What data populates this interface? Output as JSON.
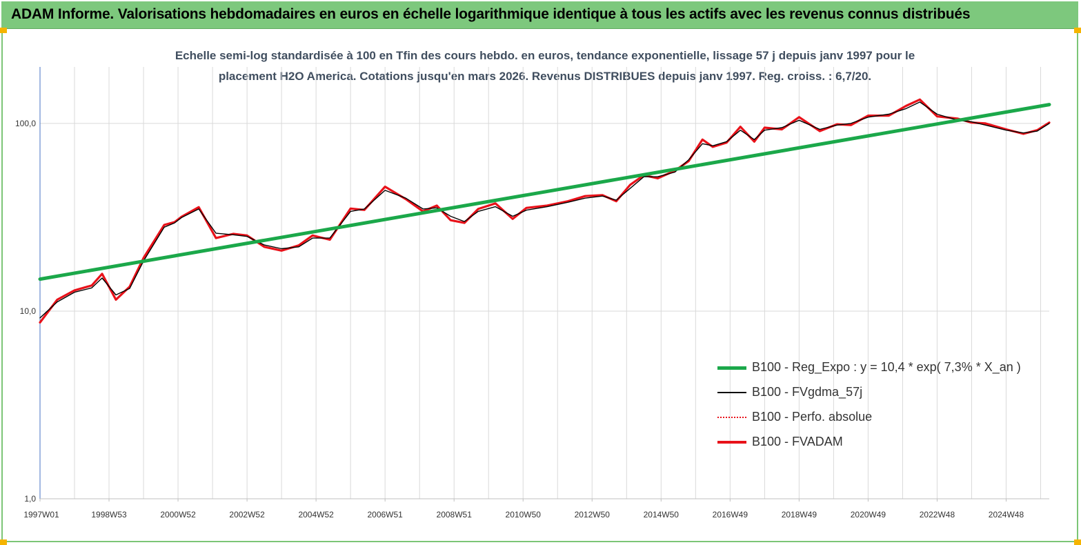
{
  "banner": {
    "title": "ADAM Informe. Valorisations hebdomadaires en euros en échelle logarithmique identique à tous les actifs avec les revenus connus distribués"
  },
  "chart_data": {
    "type": "line",
    "title": "Echelle semi-log standardisée à 100 en Tfin des cours hebdo. en euros, tendance exponentielle, lissage 57 j depuis janv 1997 pour le placement H2O America. Cotations jusqu'en mars 2026. Revenus DISTRIBUES depuis janv 1997. Reg. croiss. : 6,7/20.",
    "title_lines": [
      "Echelle semi-log standardisée à 100 en Tfin des cours hebdo. en euros, tendance exponentielle, lissage 57 j depuis janv 1997 pour le",
      "placement H2O America. Cotations jusqu'en mars 2026. Revenus DISTRIBUES depuis janv 1997. Reg. croiss. : 6,7/20."
    ],
    "y_scale": "log",
    "ylim": [
      1,
      200
    ],
    "y_ticks": [
      1,
      10,
      100
    ],
    "y_tick_labels": [
      "1,0",
      "10,0",
      "100,0"
    ],
    "x_range": [
      1997.0,
      2026.25
    ],
    "x_ticks": [
      1997.0,
      1999.0,
      2001.0,
      2003.0,
      2005.0,
      2007.0,
      2009.0,
      2011.0,
      2013.0,
      2015.0,
      2017.0,
      2019.0,
      2021.0,
      2023.0,
      2025.0
    ],
    "x_tick_labels": [
      "1997W01",
      "1998W53",
      "2000W52",
      "2002W52",
      "2004W52",
      "2006W51",
      "2008W51",
      "2010W50",
      "2012W50",
      "2014W50",
      "2016W49",
      "2018W49",
      "2020W49",
      "2022W48",
      "2024W48"
    ],
    "grid": "vertical",
    "legend_position": "bottom-right",
    "series": [
      {
        "name": "B100 - Reg_Expo : y = 10,4 *  exp( 7,3% *   X_an )",
        "color": "#1ba84a",
        "style": "thick",
        "x": [
          1997.0,
          2026.25
        ],
        "values": [
          14.8,
          126
        ]
      },
      {
        "name": "B100 - FVgdma_57j",
        "color": "#000000",
        "style": "thin",
        "x": [
          1997.0,
          1997.5,
          1998.0,
          1998.5,
          1998.8,
          1999.2,
          1999.6,
          2000.0,
          2000.6,
          2000.9,
          2001.1,
          2001.6,
          2002.1,
          2002.6,
          2003.0,
          2003.5,
          2004.0,
          2004.5,
          2004.9,
          2005.4,
          2006.0,
          2006.4,
          2007.0,
          2007.6,
          2008.1,
          2008.5,
          2008.9,
          2009.3,
          2009.7,
          2010.2,
          2010.7,
          2011.1,
          2011.7,
          2012.3,
          2012.8,
          2013.3,
          2013.7,
          2014.1,
          2014.5,
          2014.9,
          2015.4,
          2015.8,
          2016.2,
          2016.5,
          2016.9,
          2017.3,
          2017.7,
          2018.0,
          2018.5,
          2019.0,
          2019.6,
          2020.1,
          2020.5,
          2021.0,
          2021.6,
          2022.1,
          2022.5,
          2023.0,
          2023.6,
          2024.0,
          2024.4,
          2025.0,
          2025.5,
          2025.9,
          2026.25
        ],
        "values": [
          9.2,
          11.2,
          12.6,
          13.3,
          15.0,
          12.2,
          13.2,
          18.5,
          28.0,
          29.5,
          31.5,
          35.0,
          26.0,
          25.5,
          25.0,
          22.5,
          21.5,
          22.0,
          24.5,
          24.5,
          34.0,
          35.0,
          44.0,
          40.0,
          35.0,
          35.5,
          32.0,
          30.0,
          34.0,
          36.0,
          32.0,
          34.5,
          36.0,
          38.0,
          40.0,
          41.0,
          39.0,
          45.0,
          52.0,
          52.0,
          55.0,
          64.0,
          78.0,
          76.0,
          80.0,
          92.0,
          82.0,
          92.0,
          95.0,
          104.0,
          93.0,
          98.0,
          100.0,
          108.0,
          112.0,
          120.0,
          130.0,
          112.0,
          104.0,
          102.0,
          98.0,
          92.0,
          89.0,
          91.0,
          100.0
        ]
      },
      {
        "name": "B100 - Perfo. absolue",
        "color": "#e8121a",
        "style": "dotted"
      },
      {
        "name": "B100 - FVADAM",
        "color": "#e8121a",
        "style": "thick",
        "x": [
          1997.0,
          1997.5,
          1998.0,
          1998.5,
          1998.8,
          1999.2,
          1999.6,
          2000.0,
          2000.6,
          2000.9,
          2001.1,
          2001.6,
          2002.1,
          2002.6,
          2003.0,
          2003.5,
          2004.0,
          2004.5,
          2004.9,
          2005.4,
          2006.0,
          2006.4,
          2007.0,
          2007.6,
          2008.1,
          2008.5,
          2008.9,
          2009.3,
          2009.7,
          2010.2,
          2010.7,
          2011.1,
          2011.7,
          2012.3,
          2012.8,
          2013.3,
          2013.7,
          2014.1,
          2014.5,
          2014.9,
          2015.4,
          2015.8,
          2016.2,
          2016.5,
          2016.9,
          2017.3,
          2017.7,
          2018.0,
          2018.5,
          2019.0,
          2019.6,
          2020.1,
          2020.5,
          2021.0,
          2021.6,
          2022.1,
          2022.5,
          2023.0,
          2023.6,
          2024.0,
          2024.4,
          2025.0,
          2025.5,
          2025.9,
          2026.25
        ],
        "values": [
          8.7,
          11.5,
          12.9,
          13.7,
          15.8,
          11.5,
          13.5,
          19.2,
          28.8,
          29.8,
          31.8,
          35.8,
          24.5,
          25.8,
          25.3,
          22.0,
          21.0,
          22.4,
          25.3,
          24.0,
          35.2,
          34.6,
          46.0,
          39.5,
          34.0,
          36.5,
          30.5,
          29.5,
          35.0,
          37.5,
          31.0,
          35.5,
          36.5,
          38.5,
          41.0,
          41.5,
          38.5,
          47.0,
          53.0,
          51.0,
          56.0,
          63.0,
          82.0,
          75.0,
          79.0,
          96.0,
          80.0,
          95.0,
          93.0,
          108.0,
          91.0,
          99.0,
          98.0,
          110.0,
          110.0,
          124.0,
          134.0,
          109.0,
          106.0,
          101.0,
          100.0,
          93.0,
          88.0,
          92.0,
          101.0
        ]
      }
    ]
  }
}
